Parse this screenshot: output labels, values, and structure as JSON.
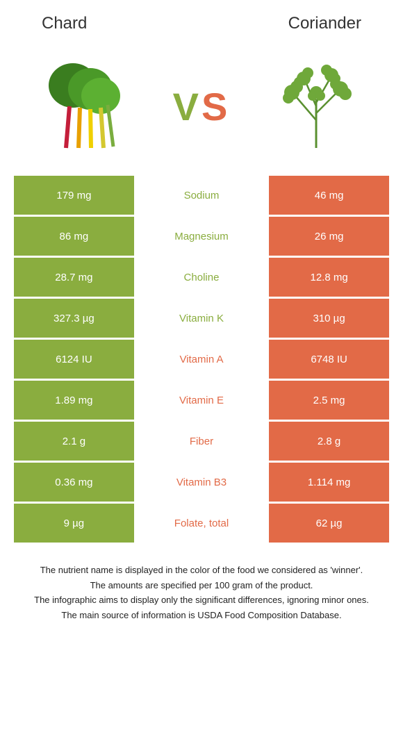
{
  "foods": {
    "left": "Chard",
    "right": "Coriander"
  },
  "colors": {
    "green": "#8aad3f",
    "orange": "#e26a47",
    "white": "#ffffff",
    "text": "#222222"
  },
  "vs": {
    "v": "V",
    "s": "S"
  },
  "rows": [
    {
      "left": "179 mg",
      "label": "Sodium",
      "right": "46 mg",
      "winner": "green"
    },
    {
      "left": "86 mg",
      "label": "Magnesium",
      "right": "26 mg",
      "winner": "green"
    },
    {
      "left": "28.7 mg",
      "label": "Choline",
      "right": "12.8 mg",
      "winner": "green"
    },
    {
      "left": "327.3 µg",
      "label": "Vitamin K",
      "right": "310 µg",
      "winner": "green"
    },
    {
      "left": "6124 IU",
      "label": "Vitamin A",
      "right": "6748 IU",
      "winner": "orange"
    },
    {
      "left": "1.89 mg",
      "label": "Vitamin E",
      "right": "2.5 mg",
      "winner": "orange"
    },
    {
      "left": "2.1 g",
      "label": "Fiber",
      "right": "2.8 g",
      "winner": "orange"
    },
    {
      "left": "0.36 mg",
      "label": "Vitamin B3",
      "right": "1.114 mg",
      "winner": "orange"
    },
    {
      "left": "9 µg",
      "label": "Folate, total",
      "right": "62 µg",
      "winner": "orange"
    }
  ],
  "notes": [
    "The nutrient name is displayed in the color of the food we considered as 'winner'.",
    "The amounts are specified per 100 gram of the product.",
    "The infographic aims to display only the significant differences, ignoring minor ones.",
    "The main source of information is USDA Food Composition Database."
  ]
}
